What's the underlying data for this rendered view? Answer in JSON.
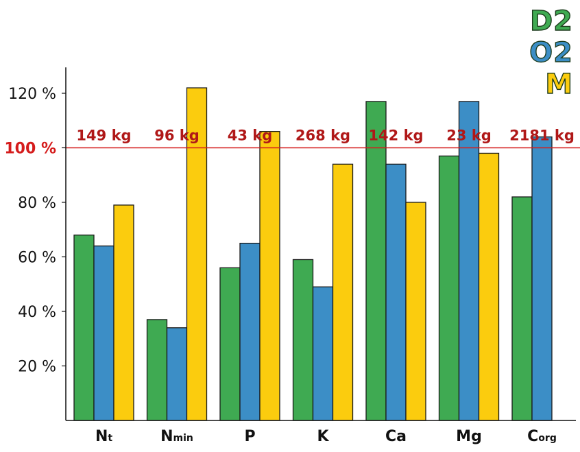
{
  "chart_data": {
    "type": "bar",
    "categories": [
      {
        "main": "N",
        "sub": "t"
      },
      {
        "main": "N",
        "sub": "min"
      },
      {
        "main": "P",
        "sub": ""
      },
      {
        "main": "K",
        "sub": ""
      },
      {
        "main": "Ca",
        "sub": ""
      },
      {
        "main": "Mg",
        "sub": ""
      },
      {
        "main": "C",
        "sub": "org"
      }
    ],
    "series": [
      {
        "name": "D2",
        "color": "#3faa52",
        "values": [
          68,
          37,
          56,
          59,
          117,
          97,
          82
        ]
      },
      {
        "name": "O2",
        "color": "#3c8ec6",
        "values": [
          64,
          34,
          65,
          49,
          94,
          117,
          104
        ]
      },
      {
        "name": "M",
        "color": "#fbcc0e",
        "values": [
          79,
          122,
          106,
          94,
          80,
          98,
          null
        ]
      }
    ],
    "yticks": [
      {
        "value": 20,
        "label": "20 %"
      },
      {
        "value": 40,
        "label": "40 %"
      },
      {
        "value": 60,
        "label": "60 %"
      },
      {
        "value": 80,
        "label": "80 %"
      },
      {
        "value": 100,
        "label": "100 %"
      },
      {
        "value": 120,
        "label": "120 %"
      }
    ],
    "ylim": [
      0,
      130
    ],
    "reference_line": {
      "value": 100,
      "color": "#d51c1c"
    },
    "amount_labels": [
      "149 kg",
      "96 kg",
      "43 kg",
      "268 kg",
      "142 kg",
      "23 kg",
      "2181 kg"
    ],
    "legend_placement": "top-right",
    "grid": false
  }
}
